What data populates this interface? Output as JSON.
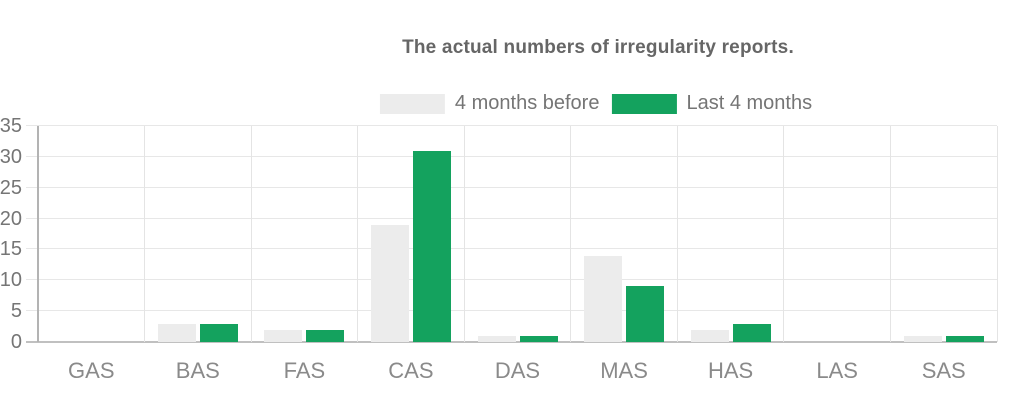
{
  "chart_data": {
    "type": "bar",
    "title": "The actual numbers of irregularity reports.",
    "categories": [
      "GAS",
      "BAS",
      "FAS",
      "CAS",
      "DAS",
      "MAS",
      "HAS",
      "LAS",
      "SAS"
    ],
    "series": [
      {
        "name": "4 months before",
        "color": "#ececec",
        "values": [
          0,
          3,
          2,
          19,
          1,
          14,
          2,
          0,
          1
        ]
      },
      {
        "name": "Last 4 months",
        "color": "#14a25e",
        "values": [
          0,
          3,
          2,
          31,
          1,
          9,
          3,
          0,
          1
        ]
      }
    ],
    "xlabel": "",
    "ylabel": "",
    "ylim": [
      0,
      35
    ],
    "ytick_step": 5,
    "yticks": [
      0,
      5,
      10,
      15,
      20,
      25,
      30,
      35
    ],
    "grid": true,
    "legend_position": "top"
  },
  "style_colors": {
    "title_text": "#666666",
    "legend_text": "#757575",
    "axis_text": "#8a8a8a",
    "gridline": "#e7e7e7",
    "baseline": "#c0c0c0",
    "axis_line": "#b3b3b3",
    "background": "#ffffff"
  }
}
